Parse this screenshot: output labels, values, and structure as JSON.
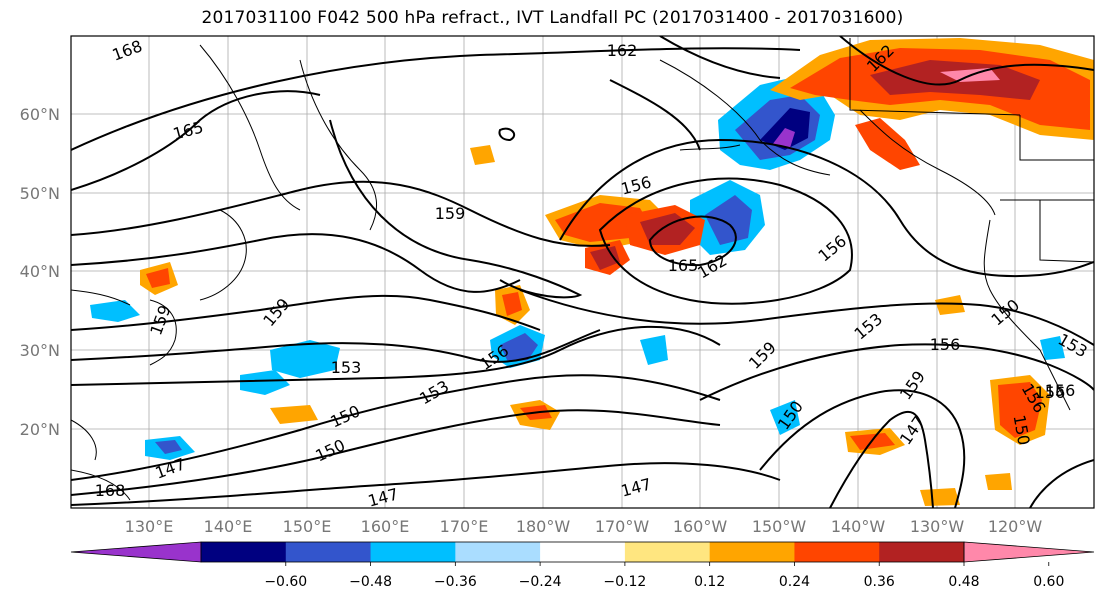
{
  "title": "2017031100 F042 500 hPa refract., IVT Landfall PC (2017031400 - 2017031600)",
  "map": {
    "lat_labels": [
      "60°N",
      "50°N",
      "40°N",
      "30°N",
      "20°N"
    ],
    "lon_labels": [
      "130°E",
      "140°E",
      "150°E",
      "160°E",
      "170°E",
      "180°W",
      "170°W",
      "160°W",
      "150°W",
      "140°W",
      "130°W",
      "120°W"
    ],
    "label_color": "#777777",
    "contour_labels": [
      "168",
      "162",
      "165",
      "156",
      "165",
      "162",
      "156",
      "159",
      "153",
      "159",
      "156",
      "153",
      "159",
      "156",
      "150",
      "153",
      "156",
      "159",
      "150",
      "150",
      "147",
      "147",
      "147",
      "159",
      "147",
      "153",
      "150",
      "156",
      "150",
      "156",
      "168",
      "162"
    ]
  },
  "colorbar": {
    "ticks": [
      "−0.60",
      "−0.48",
      "−0.36",
      "−0.24",
      "−0.12",
      "0.12",
      "0.24",
      "0.36",
      "0.48",
      "0.60"
    ],
    "colors": [
      "#9933cc",
      "#000080",
      "#3355cc",
      "#00bfff",
      "#aaddff",
      "#ffffff",
      "#ffe680",
      "#ffa500",
      "#ff4500",
      "#b22222",
      "#ff88aa"
    ]
  }
}
